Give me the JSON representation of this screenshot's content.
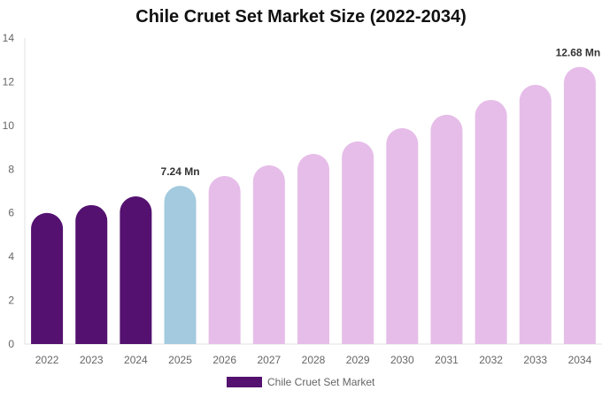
{
  "chart_data": {
    "type": "bar",
    "title": "Chile Cruet Set Market Size (2022-2034)",
    "categories": [
      "2022",
      "2023",
      "2024",
      "2025",
      "2026",
      "2027",
      "2028",
      "2029",
      "2030",
      "2031",
      "2032",
      "2033",
      "2034"
    ],
    "series": [
      {
        "name": "Chile Cruet Set Market",
        "values": [
          6.0,
          6.36,
          6.76,
          7.24,
          7.69,
          8.18,
          8.7,
          9.27,
          9.88,
          10.49,
          11.17,
          11.86,
          12.68
        ]
      }
    ],
    "data_labels": {
      "3": "7.24 Mn",
      "12": "12.68 Mn"
    },
    "ylim": [
      0,
      14
    ],
    "yticks": [
      0,
      2,
      4,
      6,
      8,
      10,
      12,
      14
    ],
    "grid": false,
    "legend": "bottom",
    "colors": {
      "historical": "#541170",
      "current": "#a3cade",
      "forecast": "#e6bde9"
    }
  }
}
